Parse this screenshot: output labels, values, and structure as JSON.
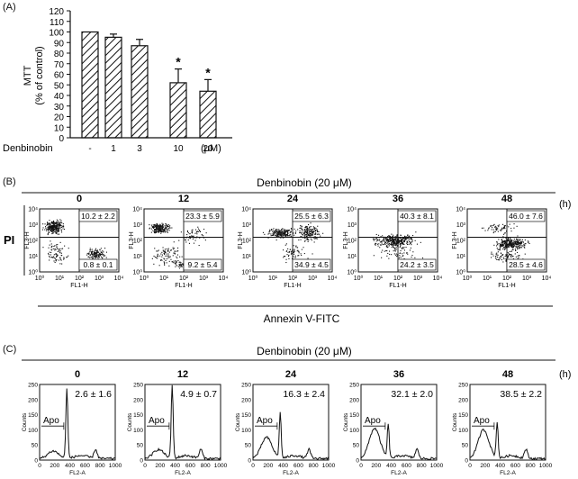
{
  "panel_labels": [
    "(A)",
    "(B)",
    "(C)"
  ],
  "panel_a": {
    "ylabel_line1": "MTT",
    "ylabel_line2": "(% of control)",
    "xlabel": "Denbinobin",
    "unit": "(μM)",
    "yticks": [
      "0",
      "10",
      "20",
      "30",
      "40",
      "50",
      "60",
      "70",
      "80",
      "90",
      "100",
      "110",
      "120"
    ],
    "ylim": [
      0,
      120
    ],
    "categories": [
      "-",
      "1",
      "3",
      "10",
      "20"
    ],
    "values": [
      100,
      95,
      87,
      52,
      44
    ],
    "errors": [
      0,
      3,
      6,
      13,
      11
    ],
    "significance": [
      "",
      "",
      "",
      "*",
      "*"
    ]
  },
  "panel_b": {
    "treatment": "Denbinobin (20 μM)",
    "unit": "(h)",
    "side_label": "PI",
    "bottom_label": "Annexin V-FITC",
    "ylab": "FL3-H",
    "xlab": "FL1-H",
    "ticks": [
      "10⁰",
      "10¹",
      "10²",
      "10³",
      "10⁴"
    ],
    "plots": [
      {
        "time": "0",
        "ur": "10.2 ± 2.2",
        "lr": "0.8 ± 0.1"
      },
      {
        "time": "12",
        "ur": "23.3 ± 5.9",
        "lr": "9.2 ± 5.4"
      },
      {
        "time": "24",
        "ur": "25.5 ± 6.3",
        "lr": "34.9 ± 4.5"
      },
      {
        "time": "36",
        "ur": "40.3 ± 8.1",
        "lr": "24.2 ± 3.5"
      },
      {
        "time": "48",
        "ur": "46.0 ± 7.6",
        "lr": "28.5 ± 4.6"
      }
    ]
  },
  "panel_c": {
    "treatment": "Denbinobin (20 μM)",
    "unit": "(h)",
    "ylab": "Counts",
    "xlab": "FL2-A",
    "apo": "Apo",
    "yticks": [
      "0",
      "50",
      "100",
      "150",
      "200",
      "250"
    ],
    "xticks": [
      "0",
      "200",
      "400",
      "600",
      "800",
      "1000"
    ],
    "plots": [
      {
        "time": "0",
        "val": "2.6 ± 1.6"
      },
      {
        "time": "12",
        "val": "4.9 ± 0.7"
      },
      {
        "time": "24",
        "val": "16.3 ± 2.4"
      },
      {
        "time": "36",
        "val": "32.1 ± 2.0"
      },
      {
        "time": "48",
        "val": "38.5 ± 2.2"
      }
    ]
  },
  "chart_data": [
    {
      "type": "bar",
      "categories": [
        "-",
        "1",
        "3",
        "10",
        "20"
      ],
      "values": [
        100,
        95,
        87,
        52,
        44
      ],
      "errors": [
        0,
        3,
        6,
        13,
        11
      ],
      "xlabel": "Denbinobin",
      "ylabel": "MTT (% of control)",
      "ylim": [
        0,
        120
      ]
    }
  ]
}
